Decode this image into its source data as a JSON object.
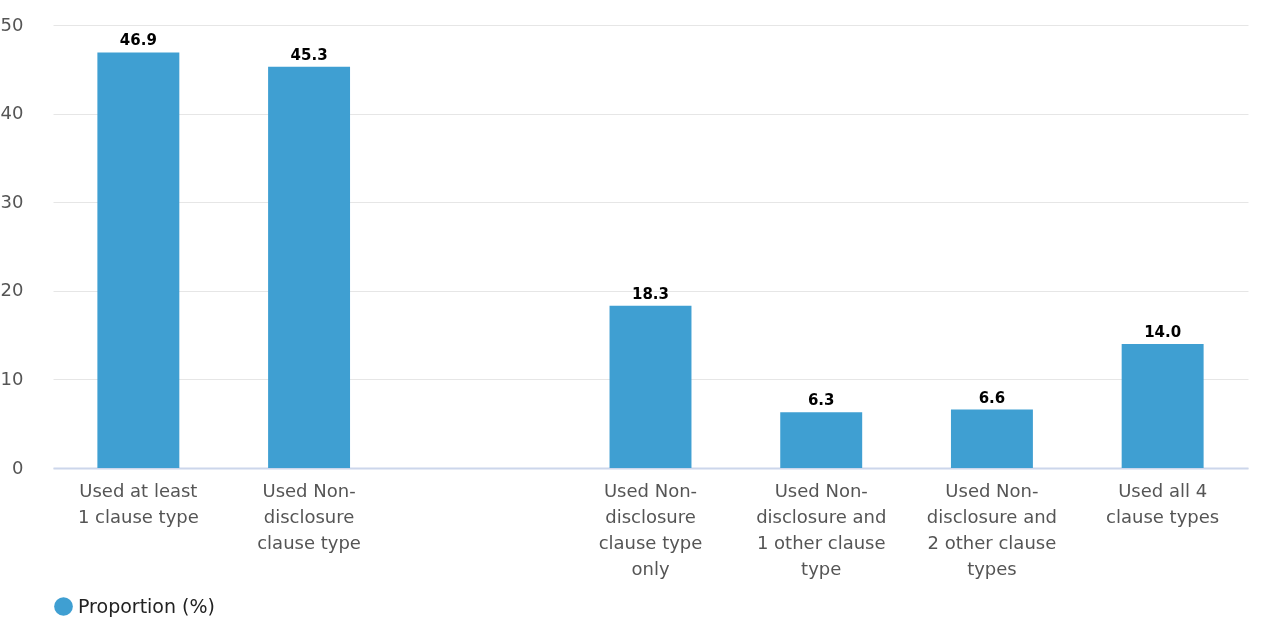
{
  "chart_data": {
    "type": "bar",
    "categories": [
      "Used at least 1 clause type",
      "Used Non-disclosure clause type",
      null,
      "Used Non-disclosure clause type only",
      "Used Non-disclosure and 1 other clause type",
      "Used Non-disclosure and 2 other clause types",
      "Used all 4 clause types"
    ],
    "series": [
      {
        "name": "Proportion (%)",
        "color": "#3f9fd2",
        "values": [
          46.9,
          45.3,
          null,
          18.3,
          6.3,
          6.6,
          14.0
        ],
        "value_labels": [
          "46.9",
          "45.3",
          null,
          "18.3",
          "6.3",
          "6.6",
          "14.0"
        ]
      }
    ],
    "ylim": [
      0,
      50
    ],
    "yticks": [
      0,
      10,
      20,
      30,
      40,
      50
    ],
    "grid": "y",
    "legend": "bottom"
  }
}
